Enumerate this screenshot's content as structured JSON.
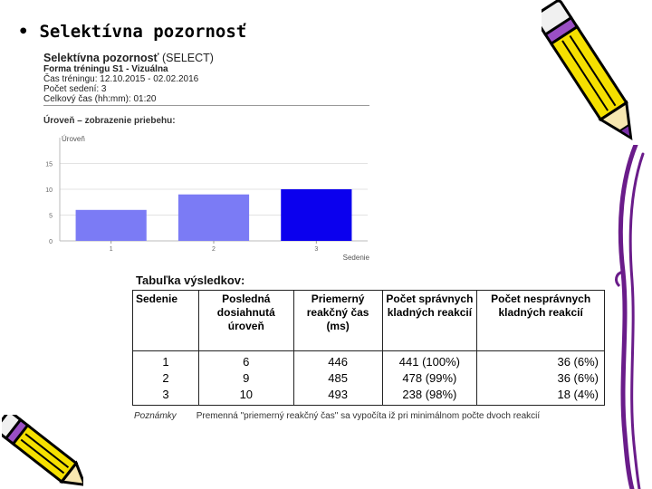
{
  "slide": {
    "bullet": "•",
    "heading": "Selektívna pozornosť"
  },
  "report": {
    "title_bold": "Selektívna pozornosť",
    "title_rest": " (SELECT)",
    "training_form": "Forma tréningu S1 - Vizuálna",
    "training_time": "Čas tréningu: 12.10.2015 - 02.02.2016",
    "session_count": "Počet sedení: 3",
    "total_time": "Celkový čas (hh:mm): 01:20"
  },
  "chart_heading": "Úroveň – zobrazenie priebehu:",
  "chart_data": {
    "type": "bar",
    "ylabel": "Úroveň",
    "xlabel": "Sedenie",
    "categories": [
      "1",
      "2",
      "3"
    ],
    "values": [
      6,
      9,
      10
    ],
    "yticks": [
      "0",
      "5",
      "10",
      "15"
    ],
    "ylim": [
      0,
      20
    ],
    "bar_colors": [
      "#7b7bf5",
      "#7b7bf5",
      "#0b00ee"
    ]
  },
  "results": {
    "title": "Tabuľka výsledkov:",
    "headers": [
      "Sedenie",
      "Posledná dosiahnutá úroveň",
      "Priemerný reakčný čas (ms)",
      "Počet správnych kladných reakcií",
      "Počet nesprávnych kladných reakcií"
    ],
    "rows": [
      [
        "1",
        "6",
        "446",
        "441 (100%)",
        "36 (6%)"
      ],
      [
        "2",
        "9",
        "485",
        "478 (99%)",
        "36 (6%)"
      ],
      [
        "3",
        "10",
        "493",
        "238 (98%)",
        "18 (4%)"
      ]
    ],
    "note_label": "Poznámky",
    "note_text": "Premenná \"priemerný reakčný čas\" sa vypočíta iž pri minimálnom počte dvoch reakcií"
  },
  "colors": {
    "bar_light": "#7b7bf5",
    "bar_dark": "#0b00ee",
    "pencil_body": "#f5e000",
    "pencil_tip": "#7a2fa8"
  },
  "icons": [
    "pencil-icon",
    "pencil-icon",
    "page-curl-border-icon"
  ]
}
